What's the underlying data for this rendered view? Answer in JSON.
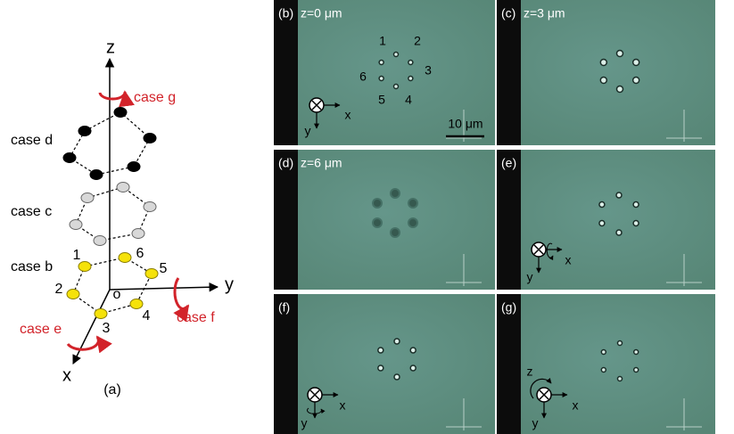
{
  "panel_a": {
    "axes": {
      "z": "z",
      "y": "y",
      "x": "x",
      "origin": "o"
    },
    "cases": {
      "g": "case g",
      "d": "case d",
      "c": "case c",
      "b": "case b",
      "e": "case e",
      "f": "case f"
    },
    "trap_numbers": [
      "1",
      "2",
      "3",
      "4",
      "5",
      "6"
    ],
    "label": "(a)"
  },
  "panels": [
    {
      "label": "(b)",
      "depth": "z=0 μm",
      "trap_numbers": [
        "1",
        "2",
        "3",
        "4",
        "5",
        "6"
      ],
      "axis_x": "x",
      "axis_y": "y",
      "scale_bar": "10 μm"
    },
    {
      "label": "(c)",
      "depth": "z=3 μm"
    },
    {
      "label": "(d)",
      "depth": "z=6 μm"
    },
    {
      "label": "(e)",
      "axis_x": "x",
      "axis_y": "y"
    },
    {
      "label": "(f)",
      "axis_x": "x",
      "axis_y": "y"
    },
    {
      "label": "(g)",
      "axis_x": "x",
      "axis_y": "y",
      "axis_z": "z"
    }
  ]
}
